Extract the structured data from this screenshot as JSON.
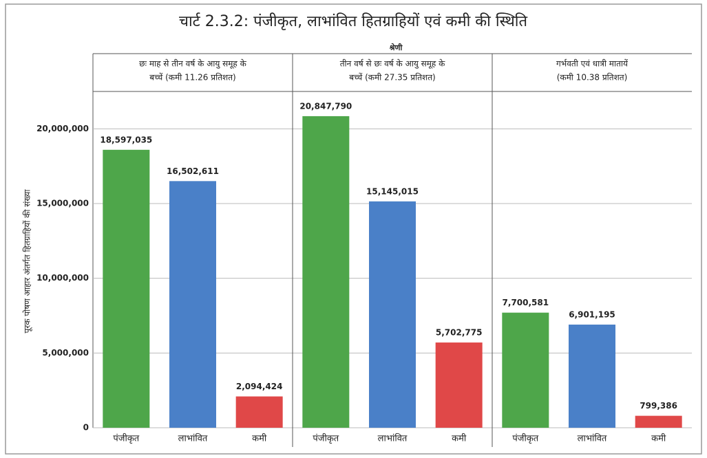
{
  "chart_data": {
    "type": "bar",
    "title": "चार्ट 2.3.2: पंजीकृत, लाभांवित हितग्राहियों एवं कमी की स्थिति",
    "facet_label": "श्रेणी",
    "y_label": "पूरक पोषण आहार अंतर्गत हितग्राहियों की संख्या",
    "ylim": [
      0,
      22500000
    ],
    "yticks": [
      0,
      {
        "value": 5000000,
        "label": "5,000,000"
      },
      {
        "value": 10000000,
        "label": "10,000,000"
      },
      {
        "value": 15000000,
        "label": "15,000,000"
      },
      {
        "value": 20000000,
        "label": "20,000,000"
      }
    ],
    "grid": true,
    "colors": [
      "#4ea64a",
      "#4a80c8",
      "#e04848"
    ],
    "panels": [
      {
        "title_lines": [
          "छः माह से तीन वर्ष के आयु समूह के",
          "बच्चें (कमी 11.26 प्रतिशत)"
        ],
        "categories": [
          "पंजीकृत",
          "लाभांवित",
          "कमी"
        ],
        "values": [
          18597035,
          16502611,
          2094424
        ],
        "value_labels": [
          "18,597,035",
          "16,502,611",
          "2,094,424"
        ]
      },
      {
        "title_lines": [
          "तीन वर्ष से छः वर्ष के आयु समूह के",
          "बच्चें (कमी 27.35 प्रतिशत)"
        ],
        "categories": [
          "पंजीकृत",
          "लाभांवित",
          "कमी"
        ],
        "values": [
          20847790,
          15145015,
          5702775
        ],
        "value_labels": [
          "20,847,790",
          "15,145,015",
          "5,702,775"
        ]
      },
      {
        "title_lines": [
          "गर्भवती एवं धात्री मातायें",
          "(कमी 10.38 प्रतिशत)"
        ],
        "categories": [
          "पंजीकृत",
          "लाभांवित",
          "कमी"
        ],
        "values": [
          7700581,
          6901195,
          799386
        ],
        "value_labels": [
          "7,700,581",
          "6,901,195",
          "799,386"
        ]
      }
    ]
  }
}
